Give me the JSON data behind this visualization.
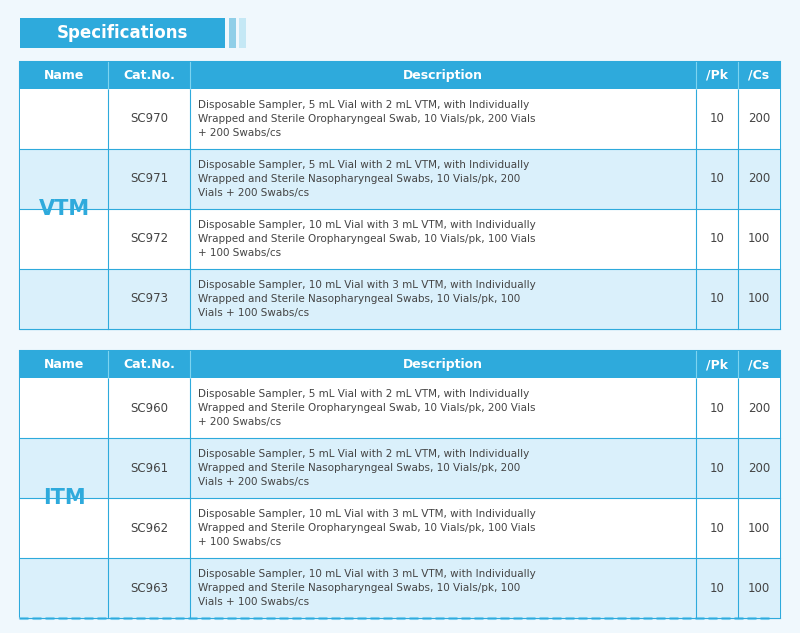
{
  "title": "Specifications",
  "title_bg": "#2eaadc",
  "title_color": "#ffffff",
  "bg_color": "#f0f8fd",
  "header_bg": "#2eaadc",
  "header_text_color": "#ffffff",
  "row_bg_alt": "#daf0fb",
  "row_bg_white": "#ffffff",
  "border_color": "#2eaadc",
  "name_color": "#2eaadc",
  "text_color": "#444444",
  "dashed_color": "#7ecef0",
  "bar1_color": "#90cfe8",
  "bar2_color": "#c5e8f5",
  "tables": [
    {
      "name": "VTM",
      "rows": [
        {
          "catno": "SC970",
          "desc": "Disposable Sampler, 5 mL Vial with 2 mL VTM, with Individually\nWrapped and Sterile Oropharyngeal Swab, 10 Vials/pk, 200 Vials\n+ 200 Swabs/cs",
          "pk": "10",
          "cs": "200"
        },
        {
          "catno": "SC971",
          "desc": "Disposable Sampler, 5 mL Vial with 2 mL VTM, with Individually\nWrapped and Sterile Nasopharyngeal Swabs, 10 Vials/pk, 200\nVials + 200 Swabs/cs",
          "pk": "10",
          "cs": "200"
        },
        {
          "catno": "SC972",
          "desc": "Disposable Sampler, 10 mL Vial with 3 mL VTM, with Individually\nWrapped and Sterile Oropharyngeal Swab, 10 Vials/pk, 100 Vials\n+ 100 Swabs/cs",
          "pk": "10",
          "cs": "100"
        },
        {
          "catno": "SC973",
          "desc": "Disposable Sampler, 10 mL Vial with 3 mL VTM, with Individually\nWrapped and Sterile Nasopharyngeal Swabs, 10 Vials/pk, 100\nVials + 100 Swabs/cs",
          "pk": "10",
          "cs": "100"
        }
      ]
    },
    {
      "name": "ITM",
      "rows": [
        {
          "catno": "SC960",
          "desc": "Disposable Sampler, 5 mL Vial with 2 mL VTM, with Individually\nWrapped and Sterile Oropharyngeal Swab, 10 Vials/pk, 200 Vials\n+ 200 Swabs/cs",
          "pk": "10",
          "cs": "200"
        },
        {
          "catno": "SC961",
          "desc": "Disposable Sampler, 5 mL Vial with 2 mL VTM, with Individually\nWrapped and Sterile Nasopharyngeal Swabs, 10 Vials/pk, 200\nVials + 200 Swabs/cs",
          "pk": "10",
          "cs": "200"
        },
        {
          "catno": "SC962",
          "desc": "Disposable Sampler, 10 mL Vial with 3 mL VTM, with Individually\nWrapped and Sterile Oropharyngeal Swab, 10 Vials/pk, 100 Vials\n+ 100 Swabs/cs",
          "pk": "10",
          "cs": "100"
        },
        {
          "catno": "SC963",
          "desc": "Disposable Sampler, 10 mL Vial with 3 mL VTM, with Individually\nWrapped and Sterile Nasopharyngeal Swabs, 10 Vials/pk, 100\nVials + 100 Swabs/cs",
          "pk": "10",
          "cs": "100"
        }
      ]
    }
  ]
}
